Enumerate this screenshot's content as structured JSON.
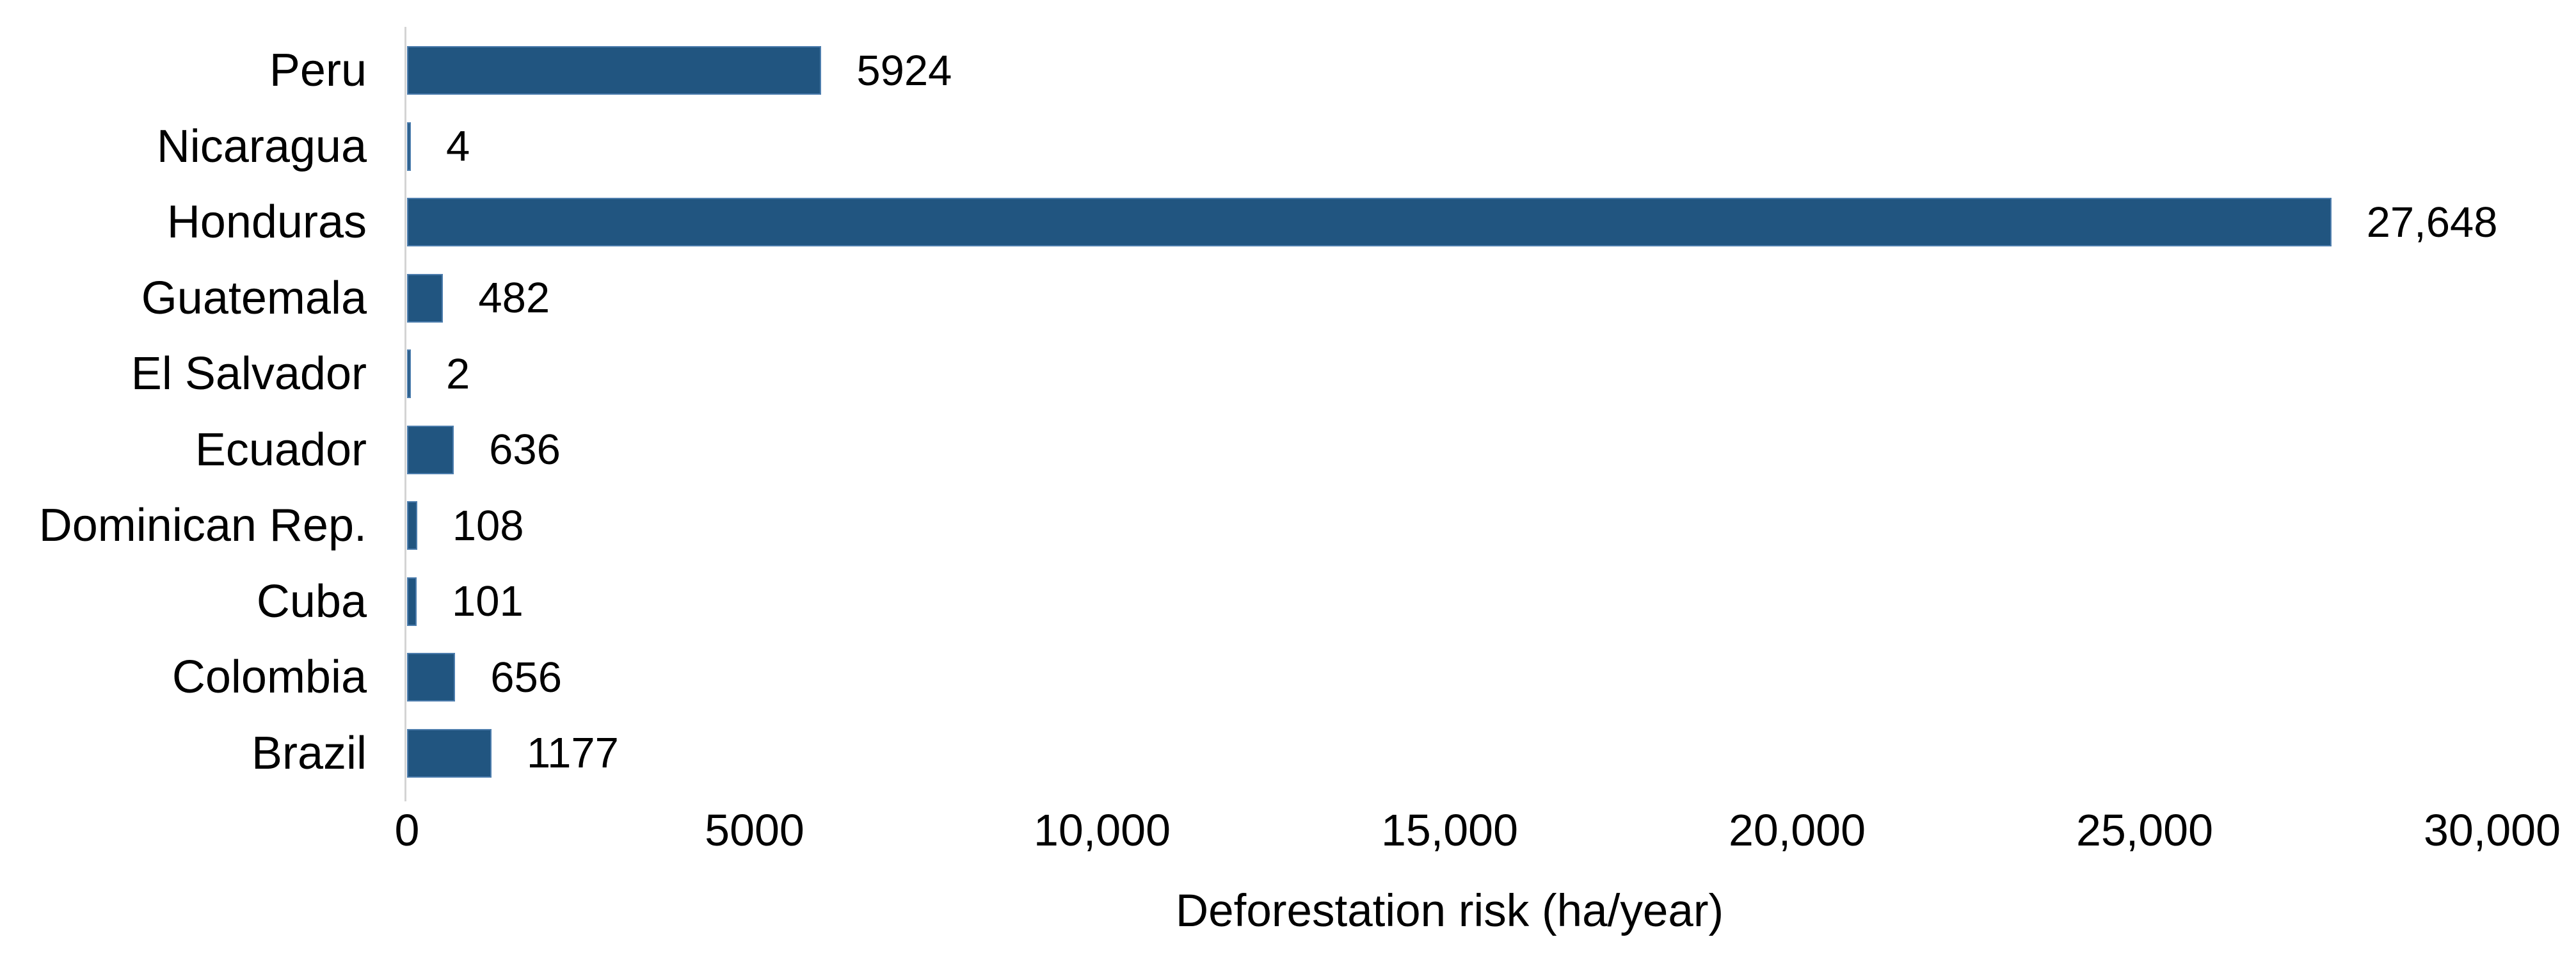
{
  "chart_data": {
    "type": "bar",
    "orientation": "horizontal",
    "title": "",
    "xlabel": "Deforestation risk (ha/year)",
    "ylabel": "",
    "categories": [
      "Peru",
      "Nicaragua",
      "Honduras",
      "Guatemala",
      "El Salvador",
      "Ecuador",
      "Dominican Rep.",
      "Cuba",
      "Colombia",
      "Brazil"
    ],
    "values": [
      5924,
      4,
      27648,
      482,
      2,
      636,
      108,
      101,
      656,
      1177
    ],
    "value_labels": [
      "5924",
      "4",
      "27,648",
      "482",
      "2",
      "636",
      "108",
      "101",
      "656",
      "1177"
    ],
    "x_tick_values": [
      0,
      5000,
      10000,
      15000,
      20000,
      25000,
      30000
    ],
    "x_tick_labels": [
      "0",
      "5000",
      "10,000",
      "15,000",
      "20,000",
      "25,000",
      "30,000"
    ],
    "xlim": [
      0,
      30000
    ],
    "grid": false,
    "legend_position": "none",
    "colors": {
      "bar_fill": "#215580",
      "bar_border": "#4d7dad",
      "axis_line": "#d4d4d4",
      "text": "#000000",
      "background": "#ffffff"
    }
  }
}
